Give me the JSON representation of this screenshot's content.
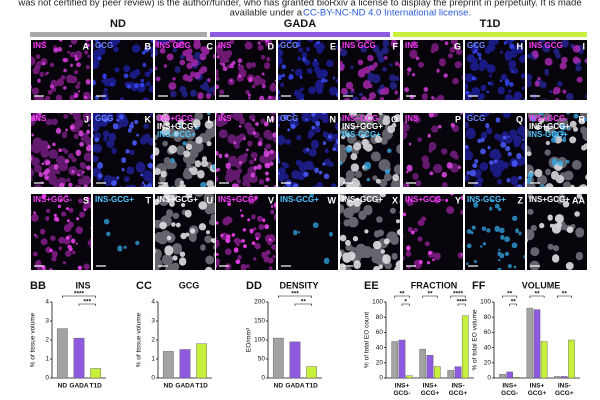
{
  "header": {
    "line1": "was not certified by peer review) is the author/funder, who has granted bioRxiv a license to display the preprint in perpetuity. It is made",
    "line2_prefix": "available under a",
    "license": "CC-BY-NC-ND 4.0 International license."
  },
  "groups": [
    "ND",
    "GADA",
    "T1D"
  ],
  "panels": [
    [
      {
        "letter": "A",
        "lines": [
          "INS"
        ]
      },
      {
        "letter": "B",
        "lines": [
          "GCG"
        ]
      },
      {
        "letter": "C",
        "lines": [
          "INS GCG"
        ]
      },
      {
        "letter": "D",
        "lines": [
          "INS"
        ]
      },
      {
        "letter": "E",
        "lines": [
          "GCG"
        ]
      },
      {
        "letter": "F",
        "lines": [
          "INS GCG"
        ]
      },
      {
        "letter": "G",
        "lines": [
          "INS"
        ]
      },
      {
        "letter": "H",
        "lines": [
          "GCG"
        ]
      },
      {
        "letter": "I",
        "lines": [
          "INS GCG"
        ]
      }
    ],
    [
      {
        "letter": "J",
        "lines": [
          "INS"
        ]
      },
      {
        "letter": "K",
        "lines": [
          "GCG"
        ]
      },
      {
        "letter": "L",
        "lines": [
          "INS+GCG-",
          "INS+GCG+",
          "INS-GCG+"
        ]
      },
      {
        "letter": "M",
        "lines": [
          "INS"
        ]
      },
      {
        "letter": "N",
        "lines": [
          "GCG"
        ]
      },
      {
        "letter": "O",
        "lines": [
          "INS+GCG-",
          "INS+GCG+",
          "INS-GCG+"
        ]
      },
      {
        "letter": "P",
        "lines": [
          "INS"
        ]
      },
      {
        "letter": "Q",
        "lines": [
          "GCG"
        ]
      },
      {
        "letter": "R",
        "lines": [
          "INS+GCG-",
          "INS+GCG+",
          "INS-GCG+"
        ]
      }
    ],
    [
      {
        "letter": "S",
        "lines": [
          "INS+GCG-"
        ]
      },
      {
        "letter": "T",
        "lines": [
          "INS-GCG+"
        ]
      },
      {
        "letter": "U",
        "lines": [
          "INS+GCG+"
        ]
      },
      {
        "letter": "V",
        "lines": [
          "INS+GCG-"
        ]
      },
      {
        "letter": "W",
        "lines": [
          "INS-GCG+"
        ]
      },
      {
        "letter": "X",
        "lines": [
          "INS+GCG+"
        ]
      },
      {
        "letter": "Y",
        "lines": [
          "INS+GCG-"
        ]
      },
      {
        "letter": "Z",
        "lines": [
          "INS-GCG+"
        ]
      },
      {
        "letter": "AA",
        "lines": [
          "INS+GCG+"
        ]
      }
    ]
  ],
  "chart_data": [
    {
      "type": "bar",
      "letter": "BB",
      "title": "INS",
      "ylabel": "% of tissue volume",
      "categories": [
        "ND",
        "GADA",
        "T1D"
      ],
      "values": [
        2.6,
        2.1,
        0.5
      ],
      "colors": [
        "#a3a3a3",
        "#8e5be0",
        "#c6f03c"
      ],
      "ylim": [
        0,
        4
      ],
      "yticks": [
        0,
        1,
        2,
        3,
        4
      ],
      "significance": [
        {
          "text": "****",
          "pair": [
            0,
            2
          ]
        },
        {
          "text": "***",
          "pair": [
            1,
            2
          ]
        }
      ]
    },
    {
      "type": "bar",
      "letter": "CC",
      "title": "GCG",
      "ylabel": "% of tissue volume",
      "categories": [
        "ND",
        "GADA",
        "T1D"
      ],
      "values": [
        1.4,
        1.5,
        1.8
      ],
      "colors": [
        "#a3a3a3",
        "#8e5be0",
        "#c6f03c"
      ],
      "ylim": [
        0,
        4
      ],
      "yticks": [
        0,
        1,
        2,
        3,
        4
      ],
      "significance": []
    },
    {
      "type": "bar",
      "letter": "DD",
      "title": "DENSITY",
      "ylabel": "EO/mm³",
      "categories": [
        "ND",
        "GADA",
        "T1D"
      ],
      "values": [
        105,
        95,
        30
      ],
      "colors": [
        "#a3a3a3",
        "#8e5be0",
        "#c6f03c"
      ],
      "ylim": [
        0,
        200
      ],
      "yticks": [
        0,
        50,
        100,
        150,
        200
      ],
      "significance": [
        {
          "text": "***",
          "pair": [
            0,
            2
          ]
        },
        {
          "text": "**",
          "pair": [
            1,
            2
          ]
        }
      ]
    },
    {
      "type": "grouped-bar",
      "letter": "EE",
      "title": "FRACTION",
      "ylabel": "% of total EO count",
      "categories": [
        [
          "INS+",
          "GCG-"
        ],
        [
          "INS+",
          "GCG+"
        ],
        [
          "INS-",
          "GCG+"
        ]
      ],
      "series": [
        {
          "color": "#a3a3a3",
          "values": [
            48,
            38,
            10
          ]
        },
        {
          "color": "#8e5be0",
          "values": [
            50,
            30,
            15
          ]
        },
        {
          "color": "#c6f03c",
          "values": [
            3,
            15,
            82
          ]
        }
      ],
      "ylim": [
        0,
        100
      ],
      "yticks": [
        0,
        20,
        40,
        60,
        80,
        100
      ],
      "significance": [
        {
          "text": "**",
          "group": 0,
          "pair": [
            0,
            2
          ]
        },
        {
          "text": "*",
          "group": 0,
          "pair": [
            1,
            2
          ]
        },
        {
          "text": "**",
          "group": 1,
          "pair": [
            0,
            2
          ]
        },
        {
          "text": "****",
          "group": 2,
          "pair": [
            0,
            2
          ]
        },
        {
          "text": "****",
          "group": 2,
          "pair": [
            1,
            2
          ]
        }
      ]
    },
    {
      "type": "grouped-bar",
      "letter": "FF",
      "title": "VOLUME",
      "ylabel": "% of total EO volume",
      "categories": [
        [
          "INS+",
          "GCG-"
        ],
        [
          "INS+",
          "GCG+"
        ],
        [
          "INS-",
          "GCG+"
        ]
      ],
      "series": [
        {
          "color": "#a3a3a3",
          "values": [
            5,
            92,
            2
          ]
        },
        {
          "color": "#8e5be0",
          "values": [
            8,
            90,
            2
          ]
        },
        {
          "color": "#c6f03c",
          "values": [
            1,
            48,
            50
          ]
        }
      ],
      "ylim": [
        0,
        100
      ],
      "yticks": [
        0,
        20,
        40,
        60,
        80,
        100
      ],
      "significance": [
        {
          "text": "**",
          "group": 0,
          "pair": [
            0,
            2
          ]
        },
        {
          "text": "**",
          "group": 0,
          "pair": [
            1,
            2
          ]
        },
        {
          "text": "**",
          "group": 1,
          "pair": [
            0,
            2
          ]
        },
        {
          "text": "**",
          "group": 2,
          "pair": [
            0,
            2
          ]
        }
      ]
    }
  ]
}
